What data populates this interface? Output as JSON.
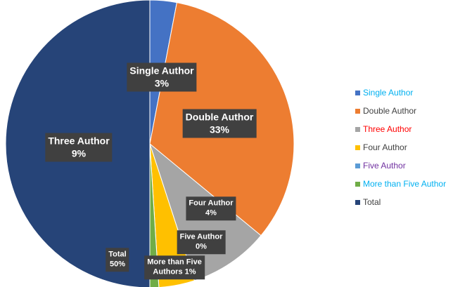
{
  "chart_data": {
    "type": "pie",
    "categories": [
      "Single Author",
      "Double Author",
      "Three Author",
      "Four Author",
      "Five Author",
      "More than Five Author",
      "Total"
    ],
    "values": [
      3,
      33,
      9,
      4,
      0,
      1,
      50
    ],
    "value_labels": [
      "3%",
      "33%",
      "9%",
      "4%",
      "0%",
      "1%",
      "50%"
    ],
    "data_labels": [
      "Single Author",
      "Double Author",
      "Three Author",
      "Four Author",
      "Five Author",
      "More than Five",
      "Total"
    ],
    "data_label_suffixes": [
      null,
      null,
      null,
      null,
      null,
      "Authors",
      null
    ],
    "colors": [
      "#4472c4",
      "#ed7d31",
      "#a5a5a5",
      "#ffc000",
      "#5b9bd5",
      "#70ad47",
      "#264478"
    ],
    "legend_text_colors": [
      "#00b0f0",
      "#404040",
      "#ff0000",
      "#404040",
      "#7030a0",
      "#00b0f0",
      "#404040"
    ],
    "legend": "right"
  }
}
